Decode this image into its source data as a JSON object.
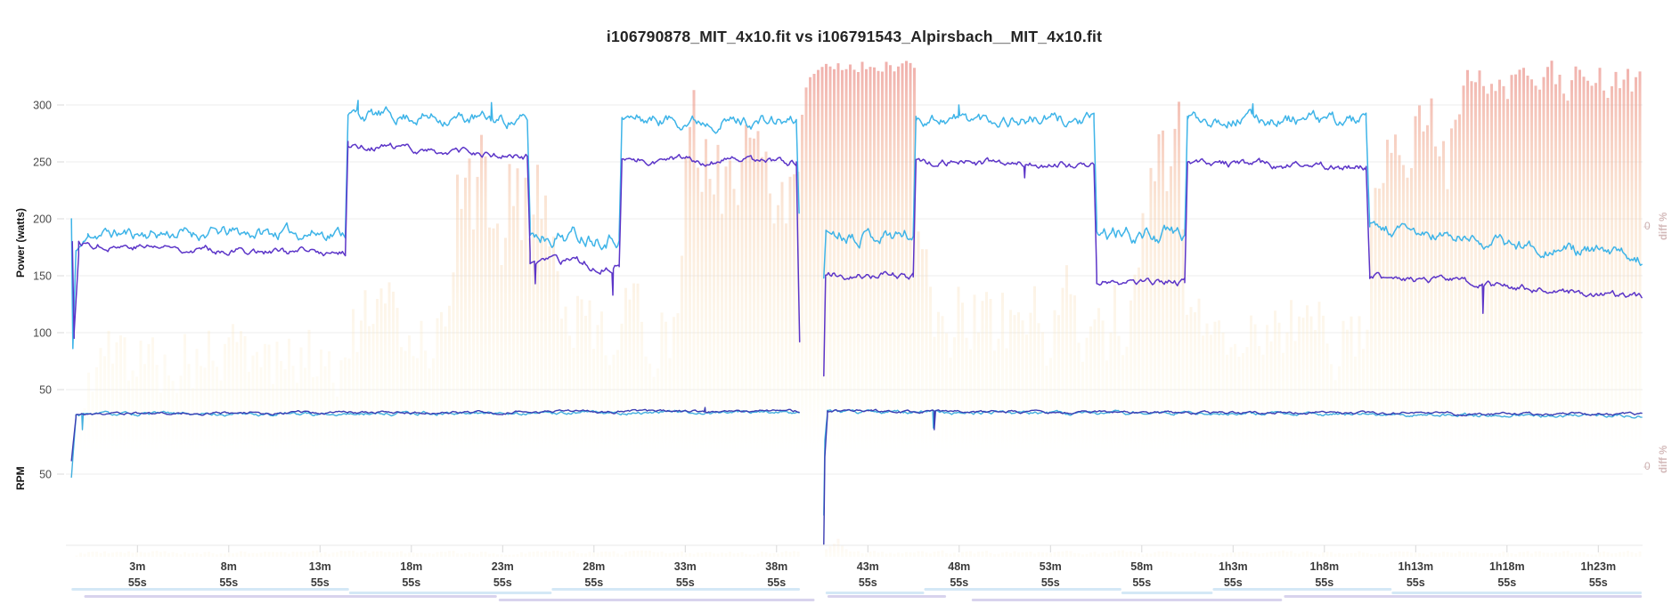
{
  "title": "i106790878_MIT_4x10.fit vs i106791543_Alpirsbach__MIT_4x10.fit",
  "axes": {
    "power_label": "Power (watts)",
    "rpm_label": "RPM",
    "diff_label": "diff %",
    "diff_zero": "0",
    "power_ticks": [
      300,
      250,
      200,
      150,
      100,
      50
    ],
    "rpm_ticks": [
      50
    ],
    "x_ticks": [
      {
        "label": "3m",
        "sub": "55s",
        "t": 3.9167
      },
      {
        "label": "8m",
        "sub": "55s",
        "t": 8.9167
      },
      {
        "label": "13m",
        "sub": "55s",
        "t": 13.9167
      },
      {
        "label": "18m",
        "sub": "55s",
        "t": 18.9167
      },
      {
        "label": "23m",
        "sub": "55s",
        "t": 23.9167
      },
      {
        "label": "28m",
        "sub": "55s",
        "t": 28.9167
      },
      {
        "label": "33m",
        "sub": "55s",
        "t": 33.9167
      },
      {
        "label": "38m",
        "sub": "55s",
        "t": 38.9167
      },
      {
        "label": "43m",
        "sub": "55s",
        "t": 43.9167
      },
      {
        "label": "48m",
        "sub": "55s",
        "t": 48.9167
      },
      {
        "label": "53m",
        "sub": "55s",
        "t": 53.9167
      },
      {
        "label": "58m",
        "sub": "55s",
        "t": 58.9167
      },
      {
        "label": "1h3m",
        "sub": "55s",
        "t": 63.9167
      },
      {
        "label": "1h8m",
        "sub": "55s",
        "t": 68.9167
      },
      {
        "label": "1h13m",
        "sub": "55s",
        "t": 73.9167
      },
      {
        "label": "1h18m",
        "sub": "55s",
        "t": 78.9167
      },
      {
        "label": "1h23m",
        "sub": "55s",
        "t": 83.9167
      }
    ]
  },
  "chart_data": {
    "type": "line",
    "x_unit": "minutes",
    "x_range": [
      0,
      86.3
    ],
    "power_axis": {
      "label": "Power (watts)",
      "ticks": [
        300,
        250,
        200,
        150,
        100,
        50
      ],
      "range": [
        50,
        345
      ]
    },
    "rpm_axis": {
      "label": "RPM",
      "ticks": [
        50
      ],
      "range": [
        10,
        100
      ]
    },
    "diff_axis": {
      "label": "diff %",
      "zero_tick": "0"
    },
    "colors": {
      "cyan": "#3eb4e8",
      "purple": "#5c35c8",
      "rpm_cyan": "#41aede",
      "rpm_navy": "#3b3db3",
      "grid": "#ececec",
      "tick": "#d8d8d8",
      "axis_label": "#4a4a4a",
      "x_label": "#3a3a3a",
      "bar_top": "#ea8f8c",
      "bar_mid": "#f6c9a3",
      "bar_low": "#fdf6de",
      "strip_blue": "#d4e8f6",
      "strip_purple": "#d8d3ed"
    },
    "series": [
      {
        "name": "i106790878_MIT_4x10.fit power",
        "panel": "power",
        "color_key": "cyan",
        "width": 1.5,
        "seed": 11,
        "runs": [
          [
            {
              "t": [
                0.3,
                0.38
              ],
              "v": [
                200,
                86
              ],
              "amp": 0
            },
            {
              "t": [
                0.38,
                0.55
              ],
              "v": [
                86,
                172
              ],
              "amp": 0
            },
            {
              "t": [
                0.55,
                1.2
              ],
              "v": [
                172,
                182
              ],
              "amp": 5
            },
            {
              "t": [
                1.2,
                15.3
              ],
              "v": [
                187,
                188
              ],
              "amp": 7
            },
            {
              "t": [
                15.3,
                15.45
              ],
              "v": [
                188,
                290
              ],
              "amp": 0
            },
            {
              "t": [
                15.45,
                25.27
              ],
              "v": [
                292,
                286
              ],
              "amp": 7
            },
            {
              "t": [
                25.27,
                25.42
              ],
              "v": [
                286,
                196
              ],
              "amp": 0
            },
            {
              "t": [
                25.42,
                30.3
              ],
              "v": [
                186,
                186
              ],
              "amp": 9
            },
            {
              "t": [
                30.3,
                30.45
              ],
              "v": [
                186,
                288
              ],
              "amp": 0
            },
            {
              "t": [
                30.45,
                40.0
              ],
              "v": [
                288,
                285
              ],
              "amp": 7
            },
            {
              "t": [
                40.0,
                40.15
              ],
              "v": [
                285,
                205
              ],
              "amp": 0
            }
          ],
          [
            {
              "t": [
                41.5,
                41.62
              ],
              "v": [
                148,
                188
              ],
              "amp": 0
            },
            {
              "t": [
                41.62,
                46.4
              ],
              "v": [
                188,
                186
              ],
              "amp": 8
            },
            {
              "t": [
                46.4,
                46.55
              ],
              "v": [
                186,
                290
              ],
              "amp": 0
            },
            {
              "t": [
                46.55,
                56.3
              ],
              "v": [
                289,
                286
              ],
              "amp": 7
            },
            {
              "t": [
                56.3,
                56.45
              ],
              "v": [
                286,
                196
              ],
              "amp": 0
            },
            {
              "t": [
                56.45,
                61.27
              ],
              "v": [
                186,
                186
              ],
              "amp": 9
            },
            {
              "t": [
                61.27,
                61.42
              ],
              "v": [
                186,
                290
              ],
              "amp": 0
            },
            {
              "t": [
                61.42,
                71.2
              ],
              "v": [
                289,
                286
              ],
              "amp": 7
            },
            {
              "t": [
                71.2,
                71.4
              ],
              "v": [
                286,
                193
              ],
              "amp": 0
            },
            {
              "t": [
                71.4,
                86.3
              ],
              "v": [
                191,
                166
              ],
              "amp": 7
            }
          ]
        ],
        "spikes": [
          [
            16.0,
            304
          ],
          [
            23.3,
            302
          ],
          [
            48.9,
            300
          ],
          [
            65.0,
            301
          ]
        ]
      },
      {
        "name": "i106791543_Alpirsbach__MIT_4x10.fit power",
        "panel": "power",
        "color_key": "purple",
        "width": 1.5,
        "seed": 77,
        "runs": [
          [
            {
              "t": [
                0.35,
                0.45
              ],
              "v": [
                180,
                95
              ],
              "amp": 0
            },
            {
              "t": [
                0.45,
                0.7
              ],
              "v": [
                100,
                168
              ],
              "amp": 0
            },
            {
              "t": [
                0.7,
                15.3
              ],
              "v": [
                178,
                169
              ],
              "amp": 4
            },
            {
              "t": [
                15.3,
                15.45
              ],
              "v": [
                169,
                268
              ],
              "amp": 0
            },
            {
              "t": [
                15.45,
                25.27
              ],
              "v": [
                265,
                254
              ],
              "amp": 4
            },
            {
              "t": [
                25.27,
                25.42
              ],
              "v": [
                254,
                170
              ],
              "amp": 0
            },
            {
              "t": [
                25.42,
                30.3
              ],
              "v": [
                162,
                158
              ],
              "amp": 5
            },
            {
              "t": [
                30.3,
                30.45
              ],
              "v": [
                158,
                252
              ],
              "amp": 0
            },
            {
              "t": [
                30.45,
                40.0
              ],
              "v": [
                252,
                250
              ],
              "amp": 4
            },
            {
              "t": [
                40.0,
                40.18
              ],
              "v": [
                250,
                92
              ],
              "amp": 0
            }
          ],
          [
            {
              "t": [
                41.5,
                41.6
              ],
              "v": [
                62,
                150
              ],
              "amp": 0
            },
            {
              "t": [
                41.6,
                46.4
              ],
              "v": [
                152,
                149
              ],
              "amp": 4
            },
            {
              "t": [
                46.4,
                46.55
              ],
              "v": [
                149,
                250
              ],
              "amp": 0
            },
            {
              "t": [
                46.55,
                56.3
              ],
              "v": [
                250,
                247
              ],
              "amp": 4
            },
            {
              "t": [
                56.3,
                56.45
              ],
              "v": [
                247,
                150
              ],
              "amp": 0
            },
            {
              "t": [
                56.45,
                61.27
              ],
              "v": [
                146,
                144
              ],
              "amp": 4
            },
            {
              "t": [
                61.27,
                61.42
              ],
              "v": [
                144,
                249
              ],
              "amp": 0
            },
            {
              "t": [
                61.42,
                71.2
              ],
              "v": [
                248,
                246
              ],
              "amp": 4
            },
            {
              "t": [
                71.2,
                71.4
              ],
              "v": [
                246,
                152
              ],
              "amp": 0
            },
            {
              "t": [
                71.4,
                86.3
              ],
              "v": [
                150,
                131
              ],
              "amp": 4
            }
          ]
        ],
        "spikes": [
          [
            25.7,
            143
          ],
          [
            29.95,
            133
          ],
          [
            52.5,
            236
          ],
          [
            77.6,
            117
          ]
        ]
      },
      {
        "name": "i106790878_MIT_4x10.fit cadence",
        "panel": "rpm",
        "color_key": "rpm_cyan",
        "width": 1.4,
        "seed": 31,
        "runs": [
          [
            {
              "t": [
                0.3,
                0.55
              ],
              "v": [
                48,
                83
              ],
              "amp": 1
            },
            {
              "t": [
                0.55,
                40.15
              ],
              "v": [
                85,
                86.5
              ],
              "amp": 1.3
            }
          ],
          [
            {
              "t": [
                41.5,
                41.56
              ],
              "v": [
                26,
                70
              ],
              "amp": 0
            },
            {
              "t": [
                41.56,
                41.7
              ],
              "v": [
                70,
                86
              ],
              "amp": 0
            },
            {
              "t": [
                41.7,
                86.3
              ],
              "v": [
                86.5,
                84
              ],
              "amp": 1.3
            }
          ]
        ],
        "spikes": [
          [
            0.9,
            76
          ],
          [
            47.5,
            77
          ]
        ]
      },
      {
        "name": "i106791543_Alpirsbach__MIT_4x10.fit cadence",
        "panel": "rpm",
        "color_key": "rpm_navy",
        "width": 1.4,
        "seed": 59,
        "runs": [
          [
            {
              "t": [
                0.3,
                0.55
              ],
              "v": [
                58,
                84
              ],
              "amp": 1
            },
            {
              "t": [
                0.55,
                40.15
              ],
              "v": [
                85.5,
                87
              ],
              "amp": 1
            }
          ],
          [
            {
              "t": [
                41.5,
                41.56
              ],
              "v": [
                9,
                60
              ],
              "amp": 0
            },
            {
              "t": [
                41.56,
                41.7
              ],
              "v": [
                60,
                84
              ],
              "amp": 0
            },
            {
              "t": [
                41.7,
                86.3
              ],
              "v": [
                87,
                85
              ],
              "amp": 1
            }
          ]
        ],
        "spikes": [
          [
            35.0,
            89
          ],
          [
            47.55,
            76
          ]
        ]
      }
    ],
    "diff_bars_power": {
      "seed": 5,
      "regions": [
        [
          0.3,
          0.9,
          2,
          8
        ],
        [
          0.9,
          15.3,
          8,
          38
        ],
        [
          15.3,
          20.8,
          14,
          48
        ],
        [
          20.8,
          26.8,
          35,
          92
        ],
        [
          26.8,
          33.6,
          14,
          50
        ],
        [
          33.6,
          40.2,
          45,
          100
        ],
        [
          40.2,
          46.4,
          94,
          100
        ],
        [
          46.4,
          58.8,
          14,
          52
        ],
        [
          58.8,
          60.9,
          50,
          95
        ],
        [
          60.9,
          71.2,
          14,
          48
        ],
        [
          71.2,
          75.8,
          55,
          100
        ],
        [
          75.8,
          86.2,
          85,
          100
        ]
      ]
    },
    "diff_bars_rpm": {
      "seed": 9,
      "regions": [
        [
          0.3,
          40.2,
          0.3,
          1.8
        ],
        [
          41.5,
          42.3,
          3,
          7
        ],
        [
          42.3,
          86.2,
          0.3,
          1.8
        ]
      ]
    },
    "interval_strips": {
      "blue_row": [
        [
          0.3,
          15.5,
          0
        ],
        [
          15.5,
          26.6,
          1
        ],
        [
          26.6,
          40.2,
          0
        ],
        [
          41.6,
          47.0,
          1
        ],
        [
          47.0,
          57.8,
          0
        ],
        [
          57.8,
          62.8,
          1
        ],
        [
          62.8,
          72.6,
          0
        ],
        [
          72.6,
          86.3,
          1
        ]
      ],
      "purple_row": [
        [
          1.0,
          23.6,
          0
        ],
        [
          23.7,
          41.0,
          1
        ],
        [
          41.7,
          48.2,
          0
        ],
        [
          49.6,
          66.6,
          1
        ],
        [
          66.7,
          86.3,
          0
        ]
      ]
    }
  }
}
